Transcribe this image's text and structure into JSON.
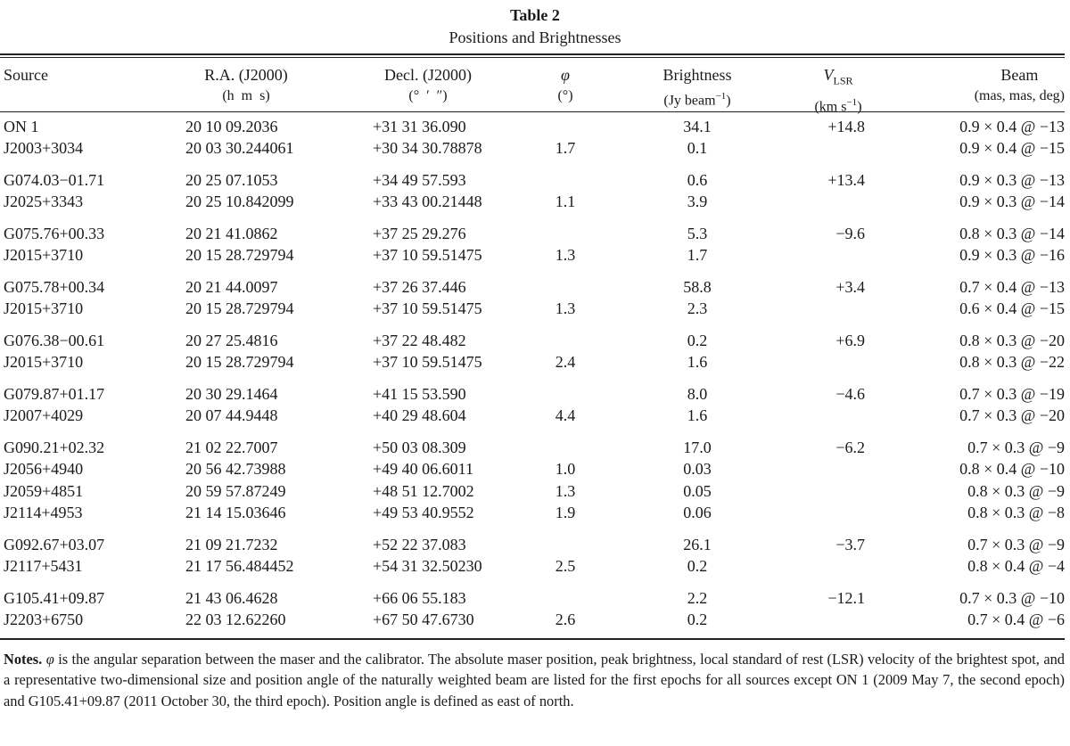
{
  "table": {
    "title": "Table 2",
    "subtitle": "Positions and Brightnesses",
    "headers": {
      "source": "Source",
      "ra": "R.A. (J2000)",
      "ra_unit": "(h  m  s)",
      "dec": "Decl. (J2000)",
      "dec_unit": "(°  ′  ″)",
      "phi": "φ",
      "phi_unit": "(°)",
      "brightness": "Brightness",
      "brightness_unit_pre": "(Jy beam",
      "brightness_unit_sup": "−1",
      "brightness_unit_post": ")",
      "vlsr": "V",
      "vlsr_sub": "LSR",
      "vlsr_unit_pre": "(km s",
      "vlsr_unit_sup": "−1",
      "vlsr_unit_post": ")",
      "beam": "Beam",
      "beam_unit": "(mas, mas, deg)"
    },
    "groups": [
      [
        {
          "source": "ON 1",
          "ra": "20 10 09.2036",
          "dec": "+31 31 36.090",
          "phi": "",
          "brightness": "34.1",
          "vlsr": "+14.8",
          "beam": "0.9 × 0.4 @ −13"
        },
        {
          "source": "J2003+3034",
          "ra": "20 03 30.244061",
          "dec": "+30 34 30.78878",
          "phi": "1.7",
          "brightness": "0.1",
          "vlsr": "",
          "beam": "0.9 × 0.4 @ −15"
        }
      ],
      [
        {
          "source": "G074.03−01.71",
          "ra": "20 25 07.1053",
          "dec": "+34 49 57.593",
          "phi": "",
          "brightness": "0.6",
          "vlsr": "+13.4",
          "beam": "0.9 × 0.3 @ −13"
        },
        {
          "source": "J2025+3343",
          "ra": "20 25 10.842099",
          "dec": "+33 43 00.21448",
          "phi": "1.1",
          "brightness": "3.9",
          "vlsr": "",
          "beam": "0.9 × 0.3 @ −14"
        }
      ],
      [
        {
          "source": "G075.76+00.33",
          "ra": "20 21 41.0862",
          "dec": "+37 25 29.276",
          "phi": "",
          "brightness": "5.3",
          "vlsr": "−9.6",
          "beam": "0.8 × 0.3 @ −14"
        },
        {
          "source": "J2015+3710",
          "ra": "20 15 28.729794",
          "dec": "+37 10 59.51475",
          "phi": "1.3",
          "brightness": "1.7",
          "vlsr": "",
          "beam": "0.9 × 0.3 @ −16"
        }
      ],
      [
        {
          "source": "G075.78+00.34",
          "ra": "20 21 44.0097",
          "dec": "+37 26 37.446",
          "phi": "",
          "brightness": "58.8",
          "vlsr": "+3.4",
          "beam": "0.7 × 0.4 @ −13"
        },
        {
          "source": "J2015+3710",
          "ra": "20 15 28.729794",
          "dec": "+37 10 59.51475",
          "phi": "1.3",
          "brightness": "2.3",
          "vlsr": "",
          "beam": "0.6 × 0.4 @ −15"
        }
      ],
      [
        {
          "source": "G076.38−00.61",
          "ra": "20 27 25.4816",
          "dec": "+37 22 48.482",
          "phi": "",
          "brightness": "0.2",
          "vlsr": "+6.9",
          "beam": "0.8 × 0.3 @ −20"
        },
        {
          "source": "J2015+3710",
          "ra": "20 15 28.729794",
          "dec": "+37 10 59.51475",
          "phi": "2.4",
          "brightness": "1.6",
          "vlsr": "",
          "beam": "0.8 × 0.3 @ −22"
        }
      ],
      [
        {
          "source": "G079.87+01.17",
          "ra": "20 30 29.1464",
          "dec": "+41 15 53.590",
          "phi": "",
          "brightness": "8.0",
          "vlsr": "−4.6",
          "beam": "0.7 × 0.3 @ −19"
        },
        {
          "source": "J2007+4029",
          "ra": "20 07 44.9448",
          "dec": "+40 29 48.604",
          "phi": "4.4",
          "brightness": "1.6",
          "vlsr": "",
          "beam": "0.7 × 0.3 @ −20"
        }
      ],
      [
        {
          "source": "G090.21+02.32",
          "ra": "21 02 22.7007",
          "dec": "+50 03 08.309",
          "phi": "",
          "brightness": "17.0",
          "vlsr": "−6.2",
          "beam": "0.7 × 0.3 @ −9"
        },
        {
          "source": "J2056+4940",
          "ra": "20 56 42.73988",
          "dec": "+49 40 06.6011",
          "phi": "1.0",
          "brightness": "0.03",
          "vlsr": "",
          "beam": "0.8 × 0.4 @ −10"
        },
        {
          "source": "J2059+4851",
          "ra": "20 59 57.87249",
          "dec": "+48 51 12.7002",
          "phi": "1.3",
          "brightness": "0.05",
          "vlsr": "",
          "beam": "0.8 × 0.3 @ −9"
        },
        {
          "source": "J2114+4953",
          "ra": "21 14 15.03646",
          "dec": "+49 53 40.9552",
          "phi": "1.9",
          "brightness": "0.06",
          "vlsr": "",
          "beam": "0.8 × 0.3 @ −8"
        }
      ],
      [
        {
          "source": "G092.67+03.07",
          "ra": "21 09 21.7232",
          "dec": "+52 22 37.083",
          "phi": "",
          "brightness": "26.1",
          "vlsr": "−3.7",
          "beam": "0.7 × 0.3 @ −9"
        },
        {
          "source": "J2117+5431",
          "ra": "21 17 56.484452",
          "dec": "+54 31 32.50230",
          "phi": "2.5",
          "brightness": "0.2",
          "vlsr": "",
          "beam": "0.8 × 0.4 @ −4"
        }
      ],
      [
        {
          "source": "G105.41+09.87",
          "ra": "21 43 06.4628",
          "dec": "+66 06 55.183",
          "phi": "",
          "brightness": "2.2",
          "vlsr": "−12.1",
          "beam": "0.7 × 0.3 @ −10"
        },
        {
          "source": "J2203+6750",
          "ra": "22 03 12.62260",
          "dec": "+67 50 47.6730",
          "phi": "2.6",
          "brightness": "0.2",
          "vlsr": "",
          "beam": "0.7 × 0.4 @ −6"
        }
      ]
    ],
    "notes": {
      "label": "Notes.",
      "phi_symbol": "φ",
      "text": "is the angular separation between the maser and the calibrator. The absolute maser position, peak brightness, local standard of rest (LSR) velocity of the brightest spot, and a representative two-dimensional size and position angle of the naturally weighted beam are listed for the first epochs for all sources except ON 1 (2009 May 7, the second epoch) and G105.41+09.87 (2011 October 30, the third epoch). Position angle is defined as east of north."
    }
  }
}
